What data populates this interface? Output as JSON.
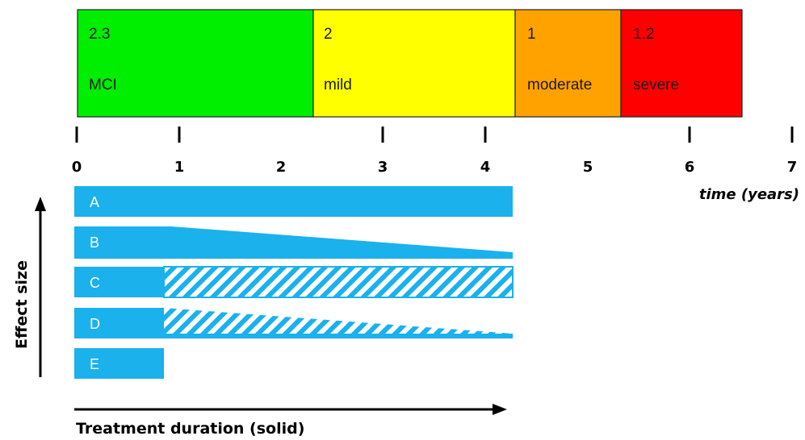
{
  "stages": [
    {
      "key": "mci",
      "value": "2.3",
      "label": "MCI",
      "color": "#00ee00"
    },
    {
      "key": "mild",
      "value": "2",
      "label": "mild",
      "color": "#ffff00"
    },
    {
      "key": "moderate",
      "value": "1",
      "label": "moderate",
      "color": "#ffa200"
    },
    {
      "key": "severe",
      "value": "1.2",
      "label": "severe",
      "color": "#ff0000"
    }
  ],
  "time_axis": {
    "ticks": [
      "0",
      "1",
      "2",
      "3",
      "4",
      "5",
      "6",
      "7"
    ],
    "label": "time (years)"
  },
  "effect_axis": {
    "label": "Effect size"
  },
  "treatment_axis": {
    "label": "Treatment duration (solid)"
  },
  "scenarios": [
    {
      "key": "A",
      "label": "A"
    },
    {
      "key": "B",
      "label": "B"
    },
    {
      "key": "C",
      "label": "C"
    },
    {
      "key": "D",
      "label": "D"
    },
    {
      "key": "E",
      "label": "E"
    }
  ],
  "colors": {
    "bar": "#1ab1ec",
    "outline": "#222222",
    "axis": "#000000"
  }
}
